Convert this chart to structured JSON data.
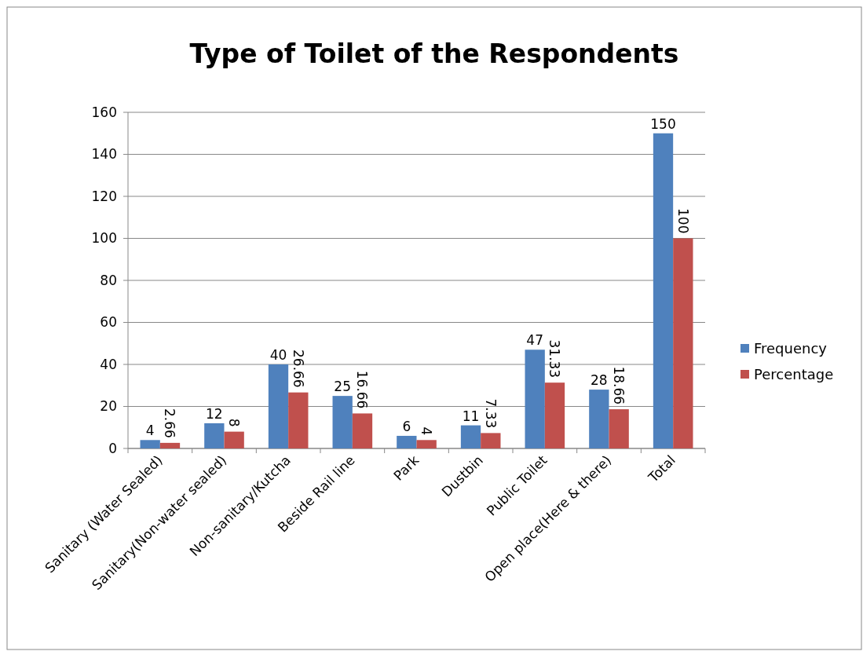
{
  "chart_data": {
    "type": "bar",
    "title": "Type of Toilet of the Respondents",
    "categories": [
      "Sanitary (Water Sealed)",
      "Sanitary(Non-water sealed)",
      "Non-sanitary/Kutcha",
      "Beside Rail line",
      "Park",
      "Dustbin",
      "Public Toilet",
      "Open place(Here & there)",
      "Total"
    ],
    "series": [
      {
        "name": "Frequency",
        "color": "#4f81bd",
        "values": [
          4,
          12,
          40,
          25,
          6,
          11,
          47,
          28,
          150
        ]
      },
      {
        "name": "Percentage",
        "color": "#c0504d",
        "values": [
          2.66,
          8,
          26.66,
          16.66,
          4,
          7.33,
          31.33,
          18.66,
          100
        ]
      }
    ],
    "ylim": [
      0,
      160
    ],
    "yticks": [
      0,
      20,
      40,
      60,
      80,
      100,
      120,
      140,
      160
    ],
    "grid": "y",
    "legend": "right",
    "data_labels": true
  }
}
